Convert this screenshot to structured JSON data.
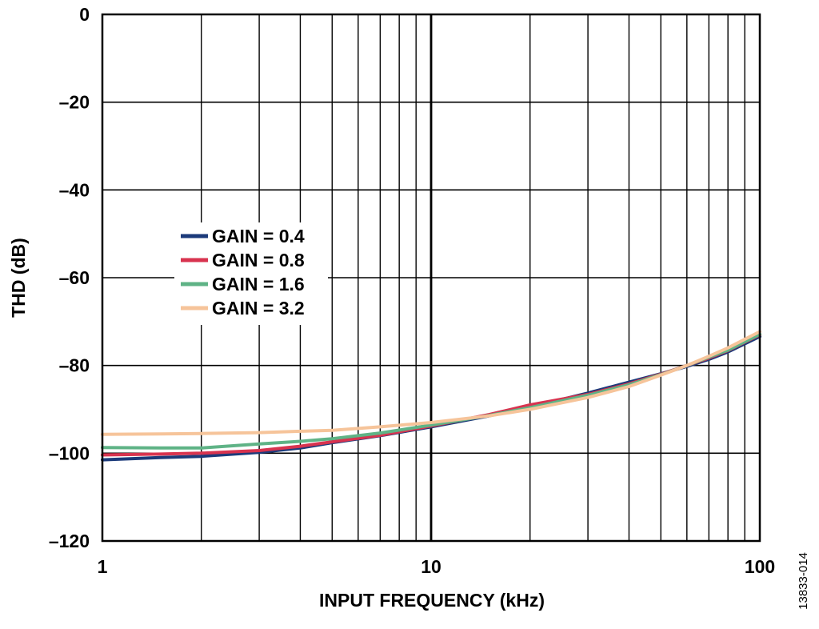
{
  "chart_data": {
    "type": "line",
    "xlabel": "INPUT FREQUENCY (kHz)",
    "ylabel": "THD (dB)",
    "xscale": "log",
    "xlim": [
      1,
      100
    ],
    "ylim": [
      -120,
      0
    ],
    "x_ticks": [
      1,
      10,
      100
    ],
    "x_tick_labels": [
      "1",
      "10",
      "100"
    ],
    "y_ticks": [
      0,
      -20,
      -40,
      -60,
      -80,
      -100,
      -120
    ],
    "y_tick_labels": [
      "0",
      "–20",
      "–40",
      "–60",
      "–80",
      "–100",
      "–120"
    ],
    "grid": true,
    "legend_position": "center-left",
    "figure_id": "13833-014",
    "series": [
      {
        "name": "GAIN = 0.4",
        "color": "#1b3a7a",
        "x": [
          1,
          1.5,
          2,
          3,
          4,
          5,
          7,
          10,
          15,
          20,
          30,
          40,
          50,
          60,
          70,
          80,
          100
        ],
        "y": [
          -101.5,
          -101.0,
          -100.7,
          -99.8,
          -98.8,
          -97.6,
          -96.0,
          -94.0,
          -91.5,
          -89.5,
          -86.3,
          -83.8,
          -81.9,
          -80.2,
          -78.6,
          -76.9,
          -73.4
        ]
      },
      {
        "name": "GAIN = 0.8",
        "color": "#d8334f",
        "x": [
          1,
          1.5,
          2,
          3,
          4,
          5,
          7,
          10,
          15,
          20,
          30,
          40,
          50,
          60,
          70,
          80,
          100
        ],
        "y": [
          -100.4,
          -100.2,
          -100.0,
          -99.4,
          -98.4,
          -97.4,
          -95.9,
          -93.8,
          -91.2,
          -89.0,
          -86.6,
          -84.2,
          -82.0,
          -80.0,
          -78.3,
          -76.6,
          -73.0
        ]
      },
      {
        "name": "GAIN = 1.6",
        "color": "#5fb386",
        "x": [
          1,
          1.5,
          2,
          3,
          4,
          5,
          7,
          10,
          15,
          20,
          30,
          40,
          50,
          60,
          70,
          80,
          100
        ],
        "y": [
          -98.7,
          -98.8,
          -98.8,
          -97.9,
          -97.3,
          -96.7,
          -95.4,
          -93.6,
          -91.4,
          -89.6,
          -86.8,
          -84.4,
          -82.1,
          -80.0,
          -78.1,
          -76.5,
          -72.9
        ]
      },
      {
        "name": "GAIN = 3.2",
        "color": "#f6c49a",
        "x": [
          1,
          1.5,
          2,
          3,
          4,
          5,
          7,
          10,
          15,
          20,
          30,
          40,
          50,
          60,
          70,
          80,
          100
        ],
        "y": [
          -95.7,
          -95.6,
          -95.5,
          -95.3,
          -95.0,
          -94.8,
          -94.0,
          -93.0,
          -91.5,
          -90.0,
          -87.3,
          -84.8,
          -82.2,
          -80.0,
          -77.9,
          -76.0,
          -72.3
        ]
      }
    ]
  }
}
